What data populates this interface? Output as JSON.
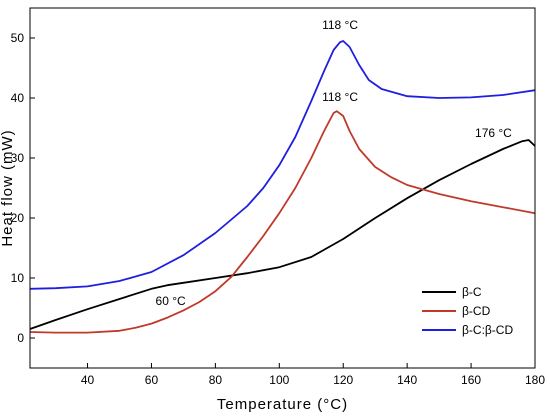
{
  "chart_data": {
    "type": "line",
    "title": "",
    "xlabel": "Temperature (°C)",
    "ylabel": "Heat flow (mW)",
    "xlim": [
      22,
      180
    ],
    "ylim": [
      -5,
      55
    ],
    "xticks": [
      40,
      60,
      80,
      100,
      120,
      140,
      160,
      180
    ],
    "yticks": [
      0,
      10,
      20,
      30,
      40,
      50
    ],
    "grid": false,
    "legend_position": "bottom-right",
    "series": [
      {
        "name": "β-C",
        "color": "#000000",
        "x": [
          22,
          30,
          40,
          50,
          60,
          65,
          70,
          80,
          90,
          100,
          110,
          115,
          120,
          130,
          140,
          150,
          160,
          170,
          176,
          178,
          180
        ],
        "y": [
          1.5,
          3.0,
          4.8,
          6.5,
          8.2,
          8.8,
          9.2,
          10.0,
          10.8,
          11.8,
          13.5,
          15.0,
          16.5,
          20.0,
          23.3,
          26.3,
          29.0,
          31.5,
          32.8,
          33.0,
          32.0
        ]
      },
      {
        "name": "β-CD",
        "color": "#c0392b",
        "x": [
          22,
          30,
          40,
          50,
          55,
          60,
          65,
          70,
          75,
          80,
          85,
          90,
          95,
          100,
          105,
          110,
          114,
          117,
          118,
          120,
          122,
          125,
          130,
          135,
          140,
          150,
          160,
          170,
          180
        ],
        "y": [
          1.0,
          0.9,
          0.9,
          1.2,
          1.7,
          2.4,
          3.4,
          4.6,
          6.0,
          7.8,
          10.2,
          13.5,
          17.0,
          20.8,
          25.0,
          30.0,
          34.5,
          37.5,
          37.8,
          37.0,
          34.5,
          31.5,
          28.5,
          26.8,
          25.5,
          24.0,
          22.8,
          21.8,
          20.8
        ]
      },
      {
        "name": "β-C:β-CD",
        "color": "#1f1fe0",
        "x": [
          22,
          30,
          40,
          50,
          60,
          70,
          80,
          90,
          95,
          100,
          105,
          110,
          114,
          117,
          119,
          120,
          122,
          125,
          128,
          132,
          140,
          150,
          160,
          170,
          180
        ],
        "y": [
          8.2,
          8.3,
          8.6,
          9.5,
          11.0,
          13.8,
          17.5,
          22.0,
          25.0,
          28.8,
          33.5,
          39.5,
          44.5,
          48.0,
          49.3,
          49.5,
          48.5,
          45.5,
          43.0,
          41.5,
          40.3,
          40.0,
          40.1,
          40.5,
          41.3
        ]
      }
    ],
    "annotations": [
      {
        "text": "118 °C",
        "x": 119,
        "y": 51.5
      },
      {
        "text": "118 °C",
        "x": 119,
        "y": 39.5
      },
      {
        "text": "176 °C",
        "x": 167,
        "y": 33.5
      },
      {
        "text": "60 °C",
        "x": 66,
        "y": 5.5
      }
    ]
  }
}
